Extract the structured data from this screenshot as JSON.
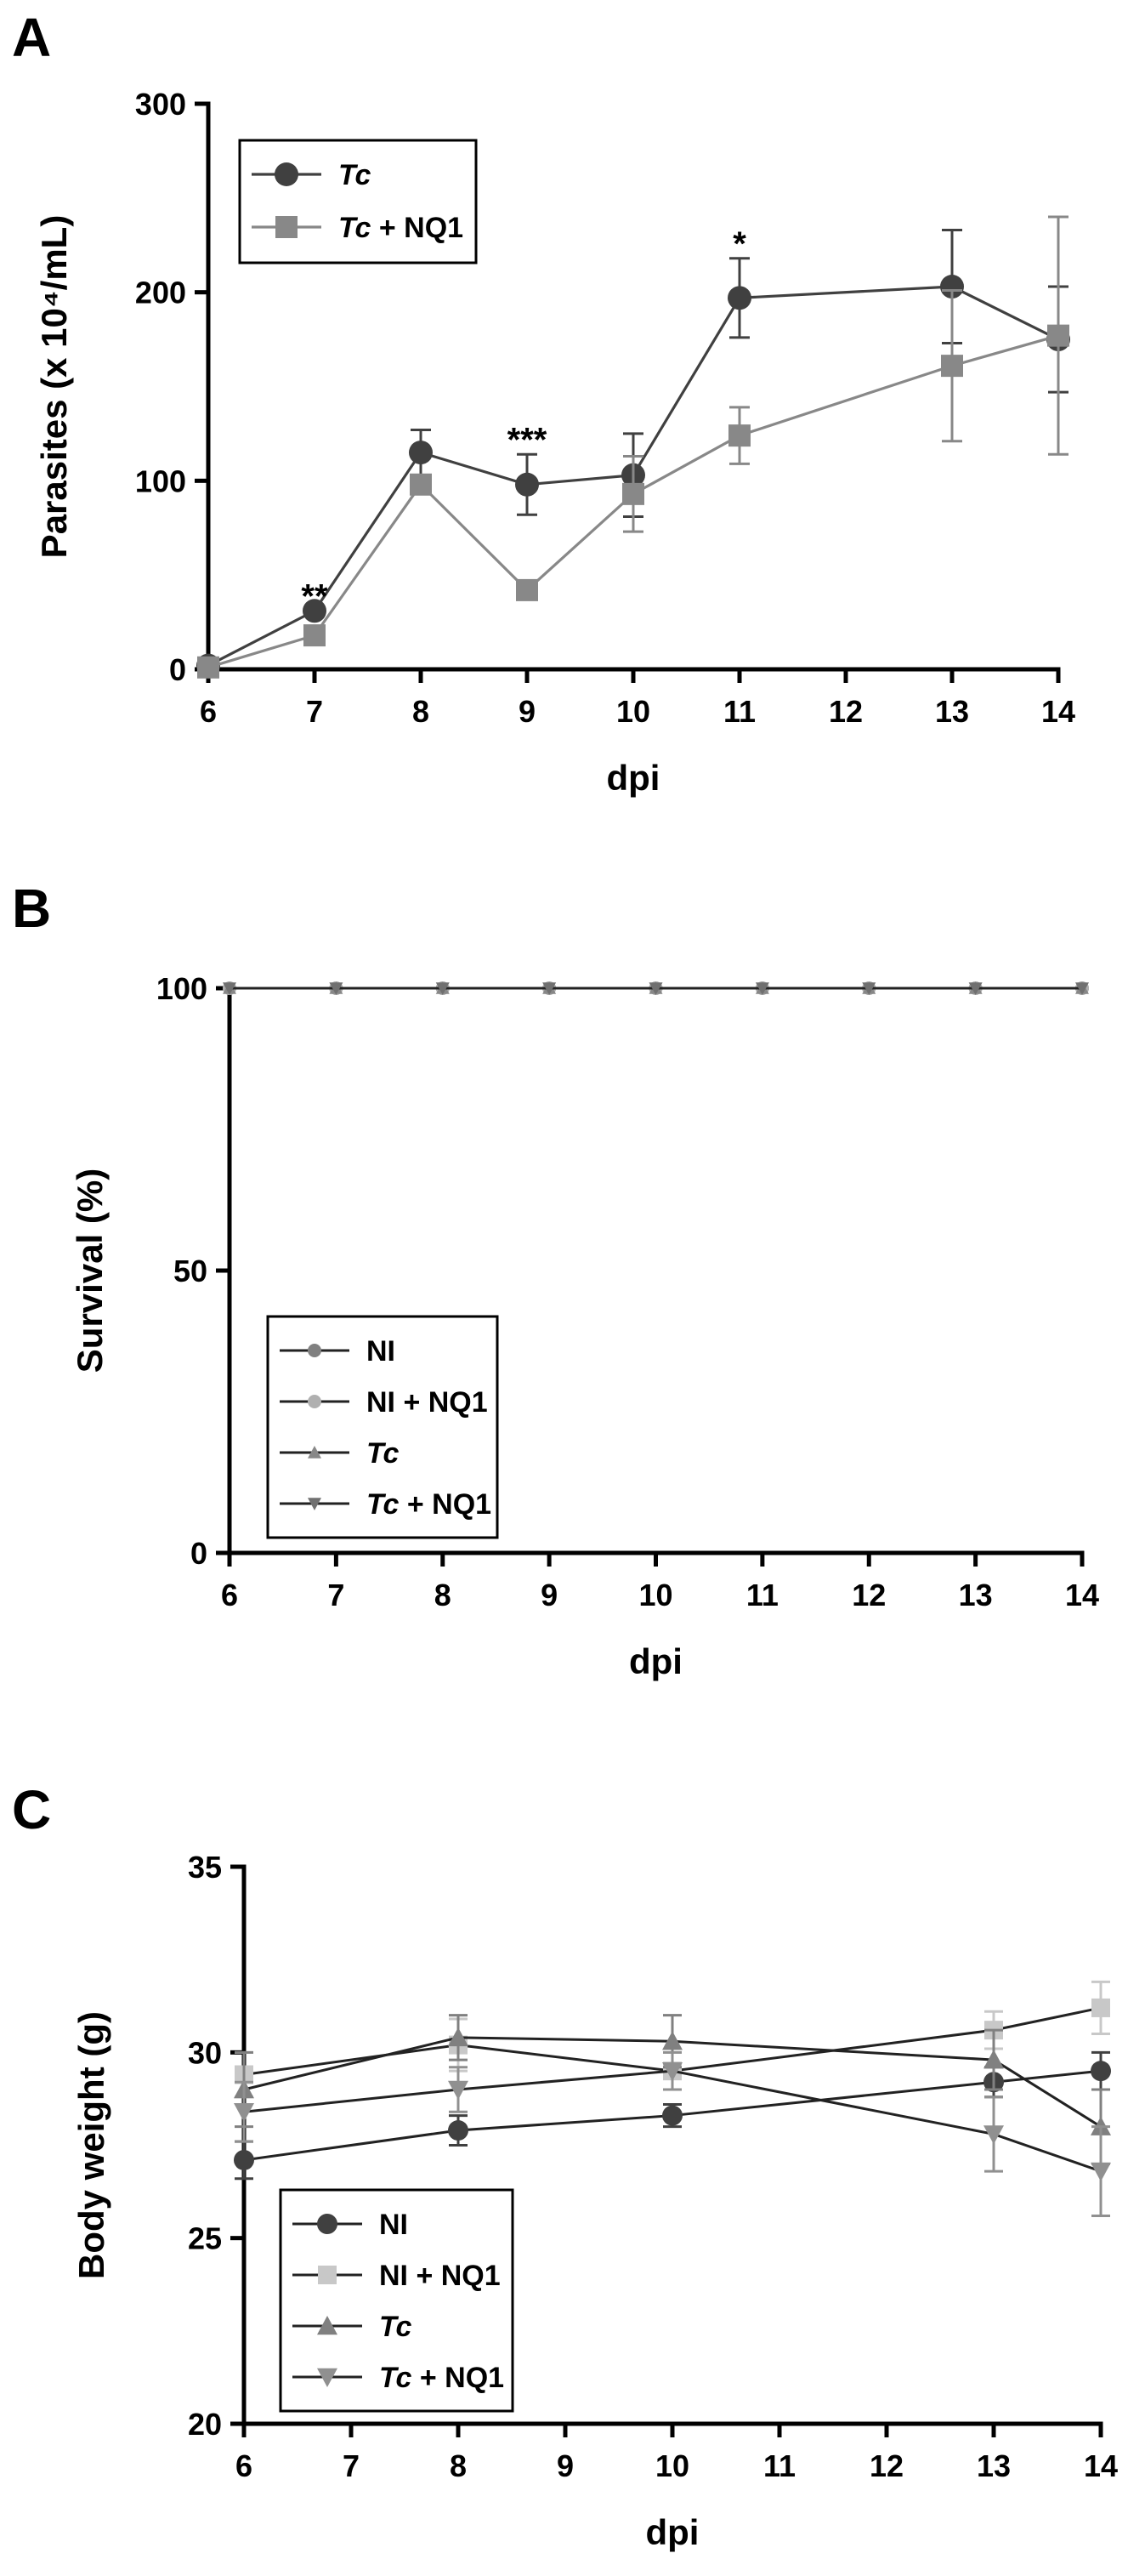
{
  "chart_data": [
    {
      "panel": "A",
      "type": "line",
      "xlabel": "dpi",
      "ylabel": "Parasites (x 10⁴/mL)",
      "xticks": [
        6,
        7,
        8,
        9,
        10,
        11,
        12,
        13,
        14
      ],
      "yticks": [
        0,
        100,
        200,
        300
      ],
      "xlim": [
        6,
        14
      ],
      "ylim": [
        0,
        300
      ],
      "legend_position": "top-left",
      "series": [
        {
          "name": "Tc",
          "name_italic": "Tc",
          "name_suffix": "",
          "marker": "circle",
          "color": "#404040",
          "x": [
            6,
            7,
            8,
            9,
            10,
            11,
            13,
            14
          ],
          "y": [
            2,
            31,
            115,
            98,
            103,
            197,
            203,
            175
          ],
          "err": [
            0,
            0,
            12,
            16,
            22,
            21,
            30,
            28
          ]
        },
        {
          "name": "Tc + NQ1",
          "name_italic": "Tc",
          "name_suffix": " + NQ1",
          "marker": "square",
          "color": "#888888",
          "x": [
            6,
            7,
            8,
            9,
            10,
            11,
            13,
            14
          ],
          "y": [
            1,
            18,
            98,
            42,
            93,
            124,
            161,
            177
          ],
          "err": [
            0,
            0,
            5,
            0,
            20,
            15,
            40,
            63
          ]
        }
      ],
      "annotations": [
        {
          "x": 7,
          "text": "**"
        },
        {
          "x": 9,
          "text": "***"
        },
        {
          "x": 11,
          "text": "*"
        }
      ]
    },
    {
      "panel": "B",
      "type": "line",
      "xlabel": "dpi",
      "ylabel": "Survival (%)",
      "xticks": [
        6,
        7,
        8,
        9,
        10,
        11,
        12,
        13,
        14
      ],
      "yticks": [
        0,
        50,
        100
      ],
      "xlim": [
        6,
        14
      ],
      "ylim": [
        0,
        100
      ],
      "legend_position": "bottom-left",
      "series": [
        {
          "name": "NI",
          "name_italic": "",
          "name_suffix": "NI",
          "marker": "circle",
          "color": "#808080",
          "x": [
            6,
            7,
            8,
            9,
            10,
            11,
            12,
            13,
            14
          ],
          "y": [
            100,
            100,
            100,
            100,
            100,
            100,
            100,
            100,
            100
          ]
        },
        {
          "name": "NI + NQ1",
          "name_italic": "",
          "name_suffix": "NI + NQ1",
          "marker": "circle",
          "color": "#b0b0b0",
          "x": [
            6,
            7,
            8,
            9,
            10,
            11,
            12,
            13,
            14
          ],
          "y": [
            100,
            100,
            100,
            100,
            100,
            100,
            100,
            100,
            100
          ]
        },
        {
          "name": "Tc",
          "name_italic": "Tc",
          "name_suffix": "",
          "marker": "triangle-up",
          "color": "#888888",
          "x": [
            6,
            7,
            8,
            9,
            10,
            11,
            12,
            13,
            14
          ],
          "y": [
            100,
            100,
            100,
            100,
            100,
            100,
            100,
            100,
            100
          ]
        },
        {
          "name": "Tc + NQ1",
          "name_italic": "Tc",
          "name_suffix": " + NQ1",
          "marker": "triangle-down",
          "color": "#707070",
          "x": [
            6,
            7,
            8,
            9,
            10,
            11,
            12,
            13,
            14
          ],
          "y": [
            100,
            100,
            100,
            100,
            100,
            100,
            100,
            100,
            100
          ]
        }
      ]
    },
    {
      "panel": "C",
      "type": "line",
      "xlabel": "dpi",
      "ylabel": "Body weight (g)",
      "xticks": [
        6,
        7,
        8,
        9,
        10,
        11,
        12,
        13,
        14
      ],
      "yticks": [
        20,
        25,
        30,
        35
      ],
      "xlim": [
        6,
        14
      ],
      "ylim": [
        20,
        35
      ],
      "legend_position": "bottom-left",
      "series": [
        {
          "name": "NI",
          "name_italic": "",
          "name_suffix": "NI",
          "marker": "circle",
          "color": "#404040",
          "x": [
            6,
            8,
            10,
            13,
            14
          ],
          "y": [
            27.1,
            27.9,
            28.3,
            29.2,
            29.5
          ],
          "err": [
            0.5,
            0.4,
            0.3,
            0.4,
            0.5
          ]
        },
        {
          "name": "NI + NQ1",
          "name_italic": "",
          "name_suffix": "NI + NQ1",
          "marker": "square",
          "color": "#c8c8c8",
          "x": [
            6,
            8,
            10,
            13,
            14
          ],
          "y": [
            29.4,
            30.2,
            29.5,
            30.6,
            31.2
          ],
          "err": [
            0.6,
            0.7,
            0.5,
            0.5,
            0.7
          ]
        },
        {
          "name": "Tc",
          "name_italic": "Tc",
          "name_suffix": "",
          "marker": "triangle-up",
          "color": "#808080",
          "x": [
            6,
            8,
            10,
            13,
            14
          ],
          "y": [
            29.0,
            30.4,
            30.3,
            29.8,
            28.0
          ],
          "err": [
            1.0,
            0.6,
            0.7,
            0.8,
            1.0
          ]
        },
        {
          "name": "Tc + NQ1",
          "name_italic": "Tc",
          "name_suffix": " + NQ1",
          "marker": "triangle-down",
          "color": "#909090",
          "x": [
            6,
            8,
            10,
            13,
            14
          ],
          "y": [
            28.4,
            29.0,
            29.5,
            27.8,
            26.8
          ],
          "err": [
            0.8,
            0.6,
            0.5,
            1.0,
            1.2
          ]
        }
      ]
    }
  ]
}
